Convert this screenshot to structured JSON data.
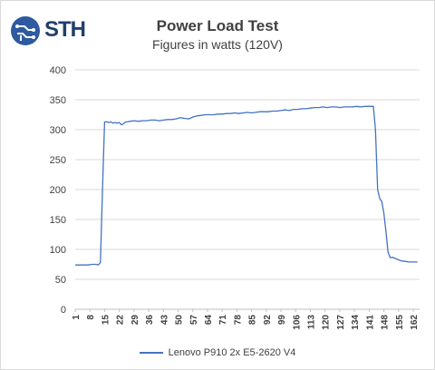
{
  "logo": {
    "text": "STH"
  },
  "chart_data": {
    "type": "line",
    "title": "Power Load Test",
    "subtitle": "Figures in watts (120V)",
    "xlabel": "",
    "ylabel": "",
    "ylim": [
      0,
      400
    ],
    "yticks": [
      "0",
      "50",
      "100",
      "150",
      "200",
      "250",
      "300",
      "350",
      "400"
    ],
    "xlim": [
      1,
      165
    ],
    "xtick_labels": [
      "1",
      "8",
      "15",
      "22",
      "29",
      "36",
      "43",
      "50",
      "57",
      "64",
      "71",
      "78",
      "85",
      "92",
      "99",
      "106",
      "113",
      "120",
      "127",
      "134",
      "141",
      "148",
      "155",
      "162"
    ],
    "grid": true,
    "legend_position": "bottom",
    "series": [
      {
        "name": "Lenovo P910 2x E5-2620 V4",
        "color": "#4472c4",
        "points": [
          [
            1,
            74
          ],
          [
            3,
            74
          ],
          [
            5,
            74
          ],
          [
            7,
            74
          ],
          [
            9,
            75
          ],
          [
            11,
            75
          ],
          [
            12,
            74
          ],
          [
            13,
            78
          ],
          [
            14,
            200
          ],
          [
            15,
            313
          ],
          [
            16,
            313
          ],
          [
            17,
            312
          ],
          [
            18,
            313
          ],
          [
            19,
            311
          ],
          [
            20,
            312
          ],
          [
            21,
            311
          ],
          [
            22,
            312
          ],
          [
            23,
            308
          ],
          [
            24,
            310
          ],
          [
            25,
            313
          ],
          [
            26,
            313
          ],
          [
            27,
            314
          ],
          [
            29,
            315
          ],
          [
            31,
            314
          ],
          [
            33,
            315
          ],
          [
            35,
            315
          ],
          [
            37,
            316
          ],
          [
            39,
            316
          ],
          [
            41,
            315
          ],
          [
            43,
            316
          ],
          [
            45,
            317
          ],
          [
            47,
            317
          ],
          [
            49,
            318
          ],
          [
            51,
            320
          ],
          [
            53,
            319
          ],
          [
            55,
            318
          ],
          [
            57,
            321
          ],
          [
            59,
            323
          ],
          [
            61,
            324
          ],
          [
            63,
            325
          ],
          [
            65,
            325
          ],
          [
            67,
            325
          ],
          [
            69,
            326
          ],
          [
            71,
            326
          ],
          [
            73,
            327
          ],
          [
            75,
            327
          ],
          [
            77,
            328
          ],
          [
            79,
            327
          ],
          [
            81,
            328
          ],
          [
            83,
            329
          ],
          [
            85,
            328
          ],
          [
            87,
            329
          ],
          [
            89,
            330
          ],
          [
            91,
            330
          ],
          [
            93,
            330
          ],
          [
            95,
            331
          ],
          [
            97,
            331
          ],
          [
            99,
            332
          ],
          [
            101,
            333
          ],
          [
            103,
            332
          ],
          [
            105,
            334
          ],
          [
            107,
            334
          ],
          [
            109,
            335
          ],
          [
            111,
            335
          ],
          [
            113,
            336
          ],
          [
            115,
            337
          ],
          [
            117,
            337
          ],
          [
            119,
            338
          ],
          [
            121,
            337
          ],
          [
            123,
            338
          ],
          [
            125,
            338
          ],
          [
            127,
            337
          ],
          [
            129,
            338
          ],
          [
            131,
            338
          ],
          [
            133,
            338
          ],
          [
            135,
            339
          ],
          [
            137,
            338
          ],
          [
            139,
            339
          ],
          [
            141,
            339
          ],
          [
            143,
            339
          ],
          [
            144,
            300
          ],
          [
            145,
            200
          ],
          [
            146,
            185
          ],
          [
            147,
            180
          ],
          [
            148,
            160
          ],
          [
            149,
            130
          ],
          [
            150,
            95
          ],
          [
            151,
            86
          ],
          [
            152,
            87
          ],
          [
            154,
            84
          ],
          [
            156,
            81
          ],
          [
            158,
            80
          ],
          [
            160,
            79
          ],
          [
            162,
            79
          ],
          [
            164,
            79
          ]
        ]
      }
    ]
  }
}
